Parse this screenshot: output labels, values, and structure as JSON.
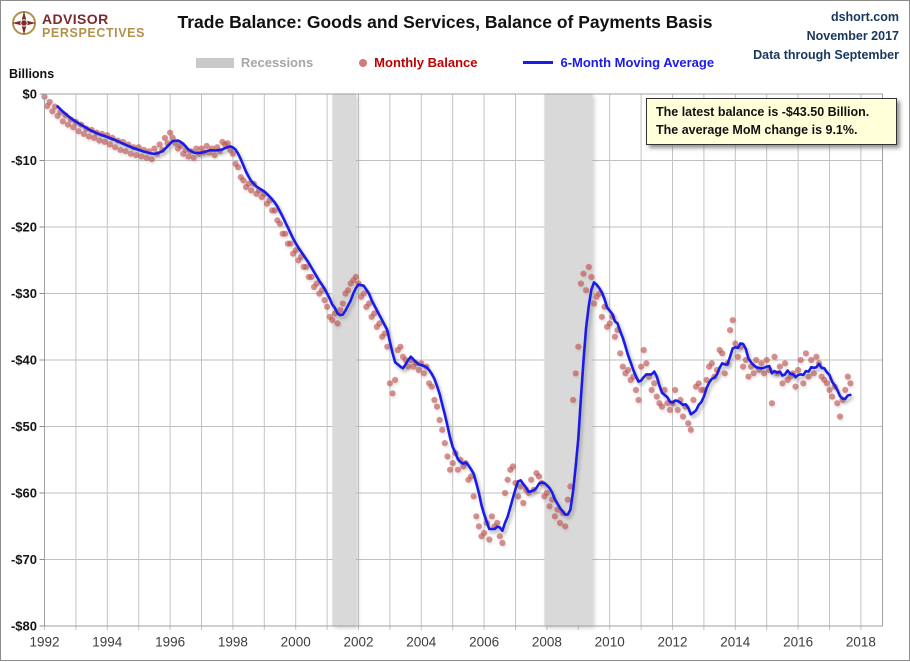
{
  "header": {
    "logo": {
      "line1": "ADVISOR",
      "line2": "PERSPECTIVES"
    },
    "title": "Trade Balance: Goods and Services, Balance of Payments Basis",
    "source": {
      "line1": "dshort.com",
      "line2": "November 2017",
      "line3": "Data through September"
    }
  },
  "legend": {
    "items": [
      {
        "label": "Recessions",
        "text_color": "#a6a6a6",
        "swatch_color": "#c9c9c9",
        "type": "band"
      },
      {
        "label": "Monthly Balance",
        "text_color": "#c00000",
        "swatch_color": "#c0504d",
        "type": "dot"
      },
      {
        "label": "6-Month Moving Average",
        "text_color": "#1b1be8",
        "swatch_color": "#1b1be8",
        "type": "line"
      }
    ]
  },
  "callout": {
    "line1": "The latest balance is -$43.50  Billion.",
    "line2": "The average MoM change is 9.1%."
  },
  "chart_data": {
    "type": "scatter+line",
    "title": "Trade Balance: Goods and Services, Balance of Payments Basis",
    "ylabel": "Billions",
    "units": "USD billions per month",
    "x_range": [
      1992,
      2018
    ],
    "ylim": [
      -80,
      0
    ],
    "grid": true,
    "legend_position": "top",
    "y_ticks": [
      {
        "value": 0,
        "label": "$0"
      },
      {
        "value": -10,
        "label": "-$10"
      },
      {
        "value": -20,
        "label": "-$20"
      },
      {
        "value": -30,
        "label": "-$30"
      },
      {
        "value": -40,
        "label": "-$40"
      },
      {
        "value": -50,
        "label": "-$50"
      },
      {
        "value": -60,
        "label": "-$60"
      },
      {
        "value": -70,
        "label": "-$70"
      },
      {
        "value": -80,
        "label": "-$80"
      }
    ],
    "x_ticks": [
      {
        "year": 1992,
        "label": "1992"
      },
      {
        "year": 1994,
        "label": "1994"
      },
      {
        "year": 1996,
        "label": "1996"
      },
      {
        "year": 1998,
        "label": "1998"
      },
      {
        "year": 2000,
        "label": "2000"
      },
      {
        "year": 2002,
        "label": "2002"
      },
      {
        "year": 2004,
        "label": "2004"
      },
      {
        "year": 2006,
        "label": "2006"
      },
      {
        "year": 2008,
        "label": "2008"
      },
      {
        "year": 2010,
        "label": "2010"
      },
      {
        "year": 2012,
        "label": "2012"
      },
      {
        "year": 2014,
        "label": "2014"
      },
      {
        "year": 2016,
        "label": "2016"
      },
      {
        "year": 2018,
        "label": "2018"
      }
    ],
    "recessions": [
      {
        "name": "2001 recession",
        "start": 2001.17,
        "end": 2001.92
      },
      {
        "name": "2007-2009 recession",
        "start": 2007.92,
        "end": 2009.45
      }
    ],
    "band_color": "#d9d9d9",
    "start_month": "1992-01",
    "end_month": "2017-09",
    "latest_balance_billions": -43.5,
    "avg_mom_change_pct": 9.1,
    "series": [
      {
        "name": "Monthly Balance",
        "type": "scatter",
        "color": "#c0504d",
        "values": [
          -0.4,
          -1.8,
          -1.2,
          -2.6,
          -1.9,
          -3.3,
          -2.7,
          -4.1,
          -3.2,
          -4.6,
          -3.8,
          -5.0,
          -4.2,
          -5.6,
          -4.6,
          -6.0,
          -5.2,
          -6.4,
          -5.4,
          -6.6,
          -5.8,
          -7.0,
          -6.0,
          -7.2,
          -6.2,
          -7.6,
          -6.6,
          -8.0,
          -7.0,
          -8.4,
          -7.2,
          -8.6,
          -7.6,
          -9.0,
          -8.0,
          -9.2,
          -8.0,
          -9.4,
          -8.4,
          -9.6,
          -8.6,
          -9.8,
          -8.2,
          -9.0,
          -7.6,
          -8.4,
          -6.6,
          -7.4,
          -5.8,
          -6.6,
          -7.4,
          -8.2,
          -7.8,
          -9.0,
          -8.4,
          -9.4,
          -8.6,
          -9.6,
          -8.2,
          -9.0,
          -8.2,
          -8.8,
          -7.8,
          -8.8,
          -8.2,
          -9.2,
          -8.0,
          -8.6,
          -7.2,
          -7.6,
          -7.4,
          -8.4,
          -9.0,
          -10.5,
          -11.0,
          -12.5,
          -13.0,
          -14.0,
          -13.5,
          -14.5,
          -13.5,
          -15.0,
          -14.5,
          -15.5,
          -15.0,
          -16.5,
          -16.0,
          -17.5,
          -17.5,
          -19.0,
          -19.5,
          -21.0,
          -21.0,
          -22.5,
          -22.5,
          -24.0,
          -23.5,
          -25.0,
          -24.5,
          -26.0,
          -26.0,
          -27.5,
          -27.5,
          -29.0,
          -28.5,
          -30.0,
          -29.5,
          -31.0,
          -32.0,
          -33.5,
          -34.0,
          -33.0,
          -34.5,
          -32.5,
          -31.5,
          -30.0,
          -29.5,
          -28.5,
          -28.0,
          -27.5,
          -28.5,
          -30.5,
          -30.0,
          -32.0,
          -31.5,
          -33.5,
          -33.0,
          -35.0,
          -34.5,
          -36.5,
          -36.0,
          -38.0,
          -43.5,
          -45.0,
          -43.0,
          -38.5,
          -38.0,
          -39.5,
          -40.0,
          -41.0,
          -40.0,
          -41.0,
          -40.5,
          -41.5,
          -40.5,
          -42.0,
          -41.0,
          -43.5,
          -44.0,
          -46.0,
          -47.0,
          -49.0,
          -50.5,
          -52.5,
          -54.5,
          -56.5,
          -55.5,
          -54.0,
          -56.5,
          -55.0,
          -56.0,
          -55.5,
          -58.0,
          -57.5,
          -60.5,
          -63.5,
          -65.0,
          -66.5,
          -66.0,
          -64.5,
          -67.0,
          -63.5,
          -65.0,
          -64.5,
          -66.5,
          -67.5,
          -60.0,
          -58.0,
          -56.5,
          -56.0,
          -58.5,
          -60.5,
          -59.0,
          -61.5,
          -59.5,
          -60.0,
          -58.0,
          -59.5,
          -57.0,
          -57.5,
          -58.5,
          -60.5,
          -60.0,
          -62.0,
          -61.0,
          -63.5,
          -62.5,
          -64.5,
          -63.0,
          -65.0,
          -61.0,
          -59.0,
          -46.0,
          -42.0,
          -38.0,
          -28.5,
          -27.0,
          -29.5,
          -26.0,
          -27.5,
          -31.5,
          -30.5,
          -30.0,
          -33.5,
          -32.0,
          -35.0,
          -34.5,
          -33.5,
          -36.5,
          -35.5,
          -39.0,
          -41.0,
          -42.0,
          -41.5,
          -43.0,
          -42.5,
          -44.5,
          -46.0,
          -41.0,
          -38.5,
          -40.5,
          -42.5,
          -44.5,
          -43.5,
          -45.5,
          -46.5,
          -47.0,
          -44.5,
          -46.5,
          -47.5,
          -46.5,
          -44.5,
          -47.5,
          -46.0,
          -48.5,
          -47.0,
          -49.5,
          -50.5,
          -46.0,
          -44.0,
          -43.5,
          -44.5,
          -44.5,
          -43.0,
          -41.0,
          -40.5,
          -42.5,
          -41.5,
          -38.5,
          -39.0,
          -42.0,
          -40.5,
          -35.5,
          -34.0,
          -37.5,
          -39.5,
          -38.0,
          -41.0,
          -40.0,
          -42.5,
          -41.0,
          -42.0,
          -40.0,
          -41.5,
          -40.5,
          -42.0,
          -40.0,
          -41.5,
          -46.5,
          -39.5,
          -42.0,
          -41.0,
          -43.5,
          -40.5,
          -43.0,
          -42.5,
          -42.0,
          -44.0,
          -41.5,
          -40.0,
          -43.5,
          -39.0,
          -42.5,
          -40.0,
          -42.0,
          -39.5,
          -40.5,
          -42.5,
          -43.0,
          -43.5,
          -44.5,
          -45.5,
          -44.0,
          -46.5,
          -48.5,
          -46.0,
          -44.5,
          -42.5,
          -43.5
        ]
      },
      {
        "name": "6-Month Moving Average",
        "type": "line",
        "color": "#1b1be8",
        "window": 6,
        "derived_from": "Monthly Balance"
      }
    ]
  }
}
